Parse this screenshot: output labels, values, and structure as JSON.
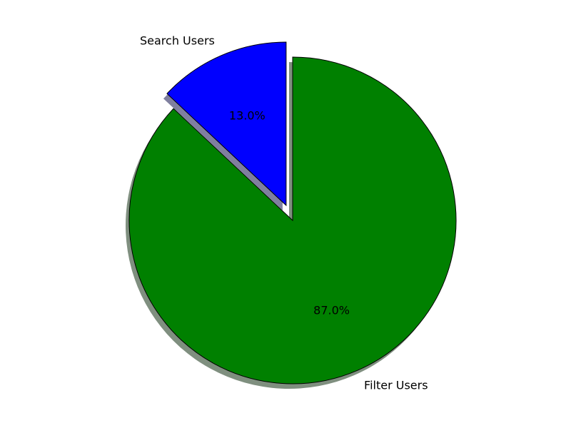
{
  "chart_data": {
    "type": "pie",
    "title": "",
    "labels": [
      "Search Users",
      "Filter Users"
    ],
    "values": [
      13.0,
      87.0
    ],
    "value_labels": [
      "13.0%",
      "87.0%"
    ],
    "colors": [
      "#0000ff",
      "#008000"
    ],
    "shadow_colors": [
      "#7f7f9f",
      "#7f8f7f"
    ],
    "exploded": [
      true,
      false
    ],
    "start_angle_deg": 90,
    "direction": "counterclockwise",
    "legend": "none"
  }
}
